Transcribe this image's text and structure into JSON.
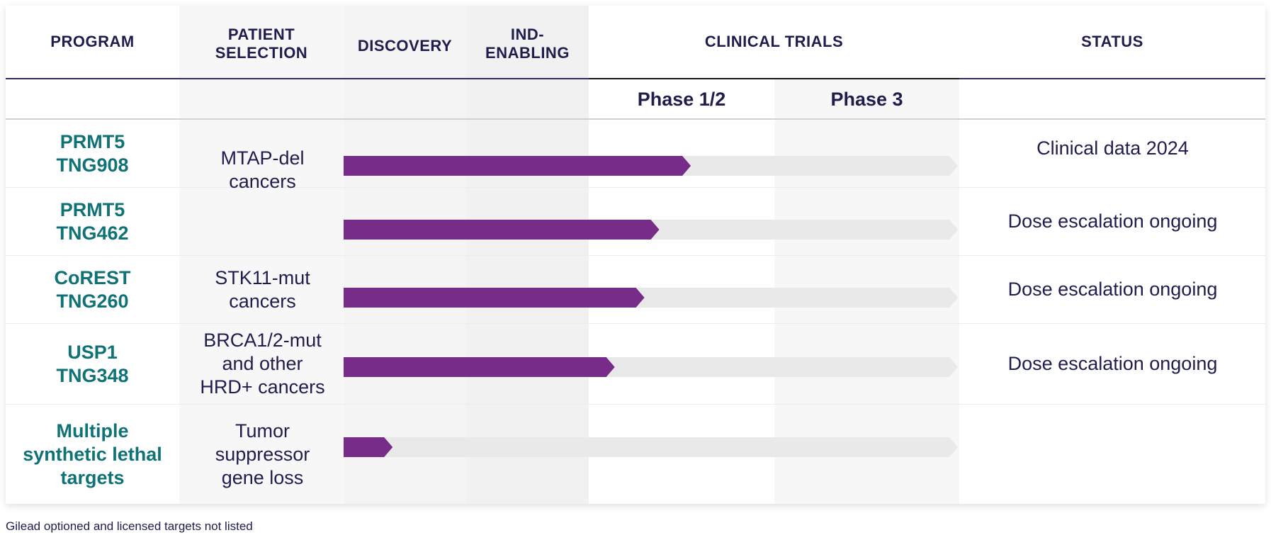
{
  "headers": {
    "program": "PROGRAM",
    "patient_selection": "PATIENT\nSELECTION",
    "discovery": "DISCOVERY",
    "ind_enabling": "IND-\nENABLING",
    "clinical_trials": "CLINICAL TRIALS",
    "status": "STATUS"
  },
  "phases": [
    "Phase 1/2",
    "Phase 3"
  ],
  "colors": {
    "progress": "#772c8a",
    "track": "#e9e9e9",
    "program_text": "#0f7276",
    "text": "#1f1d4e"
  },
  "chart_data": {
    "type": "bar",
    "stages": [
      "Discovery",
      "IND-enabling",
      "Phase 1/2",
      "Phase 3"
    ],
    "programs": [
      {
        "program": "PRMT5\nTNG908",
        "patient_selection": "MTAP-del\ncancers",
        "progress_stages": 2.55,
        "status": "Clinical data 2024"
      },
      {
        "program": "PRMT5\nTNG462",
        "patient_selection": "",
        "progress_stages": 2.38,
        "status": "Dose escalation ongoing"
      },
      {
        "program": "CoREST\nTNG260",
        "patient_selection": "STK11-mut\ncancers",
        "progress_stages": 2.3,
        "status": "Dose escalation ongoing"
      },
      {
        "program": "USP1\nTNG348",
        "patient_selection": "BRCA1/2-mut\nand other\nHRD+ cancers",
        "progress_stages": 2.14,
        "status": "Dose escalation ongoing"
      },
      {
        "program": "Multiple\nsynthetic lethal\ntargets",
        "patient_selection": "Tumor\nsuppressor\ngene loss",
        "progress_stages": 0.4,
        "status": ""
      }
    ]
  },
  "footnote": "Gilead optioned and licensed targets not listed"
}
